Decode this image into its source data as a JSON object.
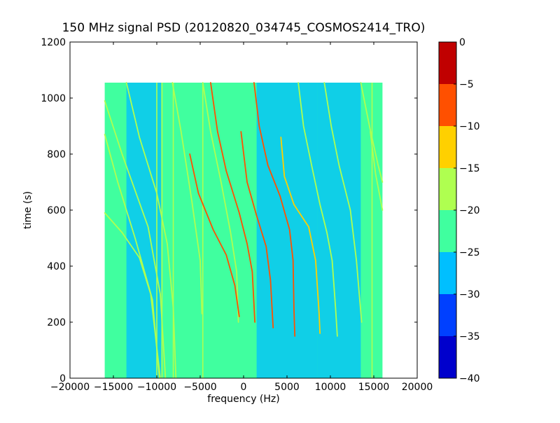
{
  "chart_data": {
    "type": "heatmap",
    "title": "150 MHz signal PSD (20120820_034745_COSMOS2414_TRO)",
    "xlabel": "frequency (Hz)",
    "ylabel": "time (s)",
    "xlim": [
      -20000,
      20000
    ],
    "ylim": [
      0,
      1200
    ],
    "x_ticks": [
      -20000,
      -15000,
      -10000,
      -5000,
      0,
      5000,
      10000,
      15000,
      20000
    ],
    "y_ticks": [
      0,
      200,
      400,
      600,
      800,
      1000,
      1200
    ],
    "data_extent": {
      "x": [
        -16000,
        16000
      ],
      "y": [
        0,
        1055
      ]
    },
    "grid": false,
    "colorbar": {
      "min": -40,
      "max": 0,
      "ticks": [
        0,
        -5,
        -10,
        -15,
        -20,
        -25,
        -30,
        -35,
        -40
      ],
      "levels": [
        {
          "from": -40,
          "to": -35,
          "color": "#0000cc"
        },
        {
          "from": -35,
          "to": -30,
          "color": "#0040ff"
        },
        {
          "from": -30,
          "to": -25,
          "color": "#00bfff"
        },
        {
          "from": -25,
          "to": -20,
          "color": "#40ff9f"
        },
        {
          "from": -20,
          "to": -15,
          "color": "#afff50"
        },
        {
          "from": -15,
          "to": -10,
          "color": "#ffd000"
        },
        {
          "from": -10,
          "to": -5,
          "color": "#ff5000"
        },
        {
          "from": -5,
          "to": 0,
          "color": "#c00000"
        }
      ]
    },
    "background_level": -22,
    "low_bands": [
      {
        "x": [
          -13500,
          -9500
        ],
        "level": -27
      },
      {
        "x": [
          1500,
          8500
        ],
        "level": -27
      },
      {
        "x": [
          8500,
          13500
        ],
        "level": -30
      }
    ],
    "vertical_lines": [
      {
        "x": -10000,
        "level": -17
      },
      {
        "x": -9400,
        "level": -17
      },
      {
        "x": -8100,
        "level": -17
      },
      {
        "x": -4700,
        "level": -17
      },
      {
        "x": 14800,
        "level": -17
      }
    ],
    "tracks": [
      {
        "level": -17,
        "points": [
          [
            -16000,
            590
          ],
          [
            -14000,
            520
          ],
          [
            -12000,
            430
          ],
          [
            -10700,
            300
          ],
          [
            -9600,
            0
          ]
        ]
      },
      {
        "level": -17,
        "points": [
          [
            -16000,
            870
          ],
          [
            -14500,
            700
          ],
          [
            -12500,
            500
          ],
          [
            -10500,
            280
          ],
          [
            -9700,
            0
          ]
        ]
      },
      {
        "level": -17,
        "points": [
          [
            -16000,
            990
          ],
          [
            -14000,
            800
          ],
          [
            -11000,
            540
          ],
          [
            -9600,
            300
          ],
          [
            -9000,
            0
          ]
        ]
      },
      {
        "level": -17,
        "points": [
          [
            -13500,
            1055
          ],
          [
            -12000,
            860
          ],
          [
            -10000,
            660
          ],
          [
            -8800,
            480
          ],
          [
            -8100,
            250
          ],
          [
            -7800,
            0
          ]
        ]
      },
      {
        "level": -17,
        "points": [
          [
            -8200,
            1055
          ],
          [
            -7200,
            880
          ],
          [
            -6000,
            640
          ],
          [
            -5000,
            420
          ],
          [
            -4800,
            230
          ]
        ]
      },
      {
        "level": -17,
        "points": [
          [
            -4700,
            1055
          ],
          [
            -3800,
            880
          ],
          [
            -2600,
            700
          ],
          [
            -1500,
            520
          ],
          [
            -800,
            380
          ],
          [
            -600,
            200
          ]
        ]
      },
      {
        "level": -7,
        "points": [
          [
            -6200,
            800
          ],
          [
            -5200,
            660
          ],
          [
            -3500,
            530
          ],
          [
            -2000,
            440
          ],
          [
            -1000,
            330
          ],
          [
            -500,
            220
          ]
        ]
      },
      {
        "level": -7,
        "points": [
          [
            -3800,
            1055
          ],
          [
            -3000,
            880
          ],
          [
            -2000,
            740
          ],
          [
            -500,
            590
          ],
          [
            400,
            480
          ],
          [
            1000,
            380
          ],
          [
            1300,
            200
          ]
        ]
      },
      {
        "level": -7,
        "points": [
          [
            -300,
            880
          ],
          [
            400,
            700
          ],
          [
            1500,
            580
          ],
          [
            2600,
            470
          ],
          [
            3100,
            350
          ],
          [
            3400,
            180
          ]
        ]
      },
      {
        "level": -7,
        "points": [
          [
            1200,
            1055
          ],
          [
            1800,
            900
          ],
          [
            2800,
            760
          ],
          [
            4200,
            650
          ],
          [
            5300,
            530
          ],
          [
            5700,
            420
          ],
          [
            5800,
            250
          ],
          [
            5900,
            150
          ]
        ]
      },
      {
        "level": -12,
        "points": [
          [
            4300,
            860
          ],
          [
            4700,
            720
          ],
          [
            5800,
            620
          ],
          [
            7500,
            540
          ],
          [
            8300,
            420
          ],
          [
            8700,
            230
          ],
          [
            8800,
            160
          ]
        ]
      },
      {
        "level": -17,
        "points": [
          [
            6300,
            1055
          ],
          [
            6900,
            900
          ],
          [
            7900,
            750
          ],
          [
            8800,
            620
          ],
          [
            9600,
            520
          ],
          [
            10200,
            420
          ],
          [
            10600,
            250
          ],
          [
            10800,
            150
          ]
        ]
      },
      {
        "level": -17,
        "points": [
          [
            9300,
            1055
          ],
          [
            10100,
            900
          ],
          [
            11000,
            760
          ],
          [
            12300,
            600
          ],
          [
            13000,
            420
          ],
          [
            13600,
            200
          ]
        ]
      },
      {
        "level": -17,
        "points": [
          [
            13500,
            1055
          ],
          [
            14500,
            900
          ],
          [
            15500,
            760
          ],
          [
            16000,
            700
          ]
        ]
      },
      {
        "level": -17,
        "points": [
          [
            14600,
            880
          ],
          [
            15200,
            730
          ],
          [
            16000,
            600
          ]
        ]
      }
    ]
  }
}
